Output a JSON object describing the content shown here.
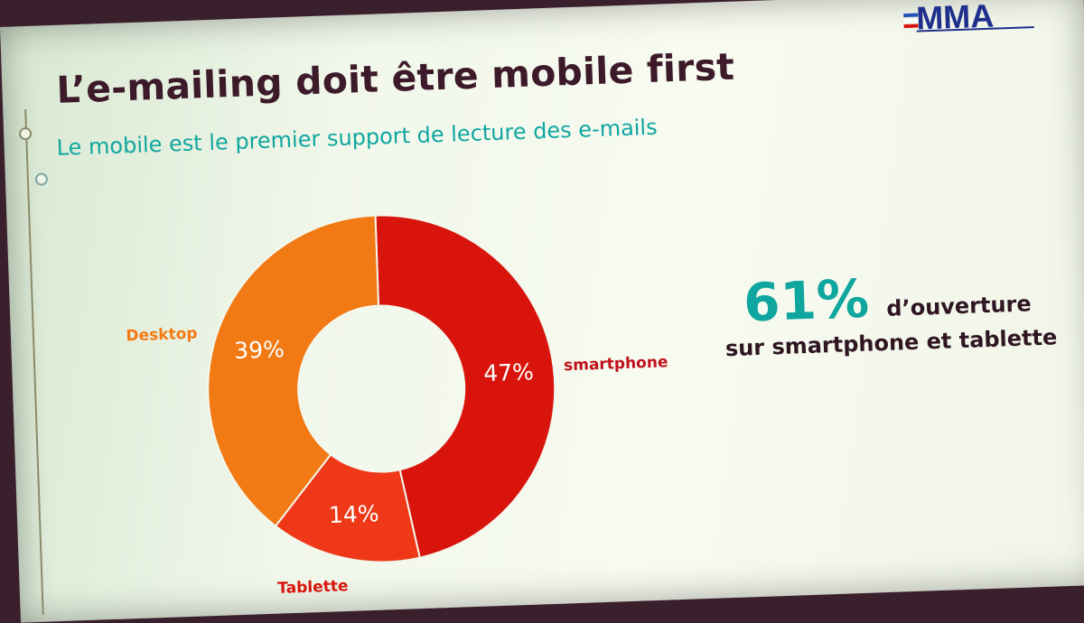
{
  "slide": {
    "title": "L’e-mailing doit être mobile first",
    "subtitle": "Le mobile est le premier support de lecture des e-mails",
    "logo_text": "MMA"
  },
  "kpi": {
    "value": "61%",
    "line1": "d’ouverture",
    "line2": "sur smartphone et tablette"
  },
  "colors": {
    "title": "#3d1a2a",
    "accent": "#10a6a0",
    "smartphone": "#d8140c",
    "tablette": "#ee3818",
    "desktop": "#f27a14"
  },
  "chart_data": {
    "type": "pie",
    "style": "donut",
    "categories": [
      "smartphone",
      "Tablette",
      "Desktop"
    ],
    "values": [
      47,
      14,
      39
    ],
    "value_labels": [
      "47%",
      "14%",
      "39%"
    ],
    "colors": [
      "#d8140c",
      "#ee3818",
      "#f27a14"
    ],
    "start_angle_deg": 0,
    "direction": "clockwise"
  }
}
